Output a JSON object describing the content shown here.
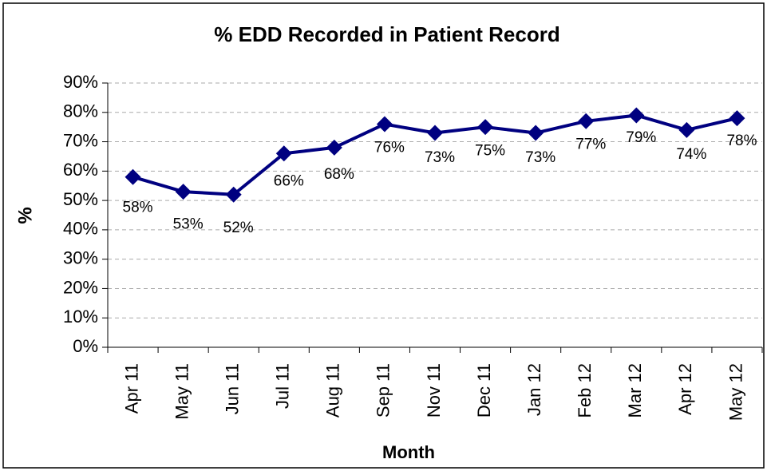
{
  "chart_data": {
    "type": "line",
    "title": "% EDD Recorded in Patient Record",
    "x_label": "Month",
    "y_label": "%",
    "categories": [
      "Apr 11",
      "May 11",
      "Jun 11",
      "Jul 11",
      "Aug 11",
      "Sep 11",
      "Nov 11",
      "Dec 11",
      "Jan 12",
      "Feb 12",
      "Mar 12",
      "Apr 12",
      "May 12"
    ],
    "series": [
      {
        "name": "% EDD Recorded",
        "color": "#000080",
        "values": [
          58,
          53,
          52,
          66,
          68,
          76,
          73,
          75,
          73,
          77,
          79,
          74,
          78
        ],
        "value_labels": [
          "58%",
          "53%",
          "52%",
          "66%",
          "68%",
          "76%",
          "73%",
          "75%",
          "73%",
          "77%",
          "79%",
          "74%",
          "78%"
        ]
      }
    ],
    "ylim": [
      0,
      90
    ],
    "yticks": [
      {
        "value": 0,
        "label": "0%"
      },
      {
        "value": 10,
        "label": "10%"
      },
      {
        "value": 20,
        "label": "20%"
      },
      {
        "value": 30,
        "label": "30%"
      },
      {
        "value": 40,
        "label": "40%"
      },
      {
        "value": 50,
        "label": "50%"
      },
      {
        "value": 60,
        "label": "60%"
      },
      {
        "value": 70,
        "label": "70%"
      },
      {
        "value": 80,
        "label": "80%"
      },
      {
        "value": 90,
        "label": "90%"
      }
    ],
    "grid": true
  }
}
